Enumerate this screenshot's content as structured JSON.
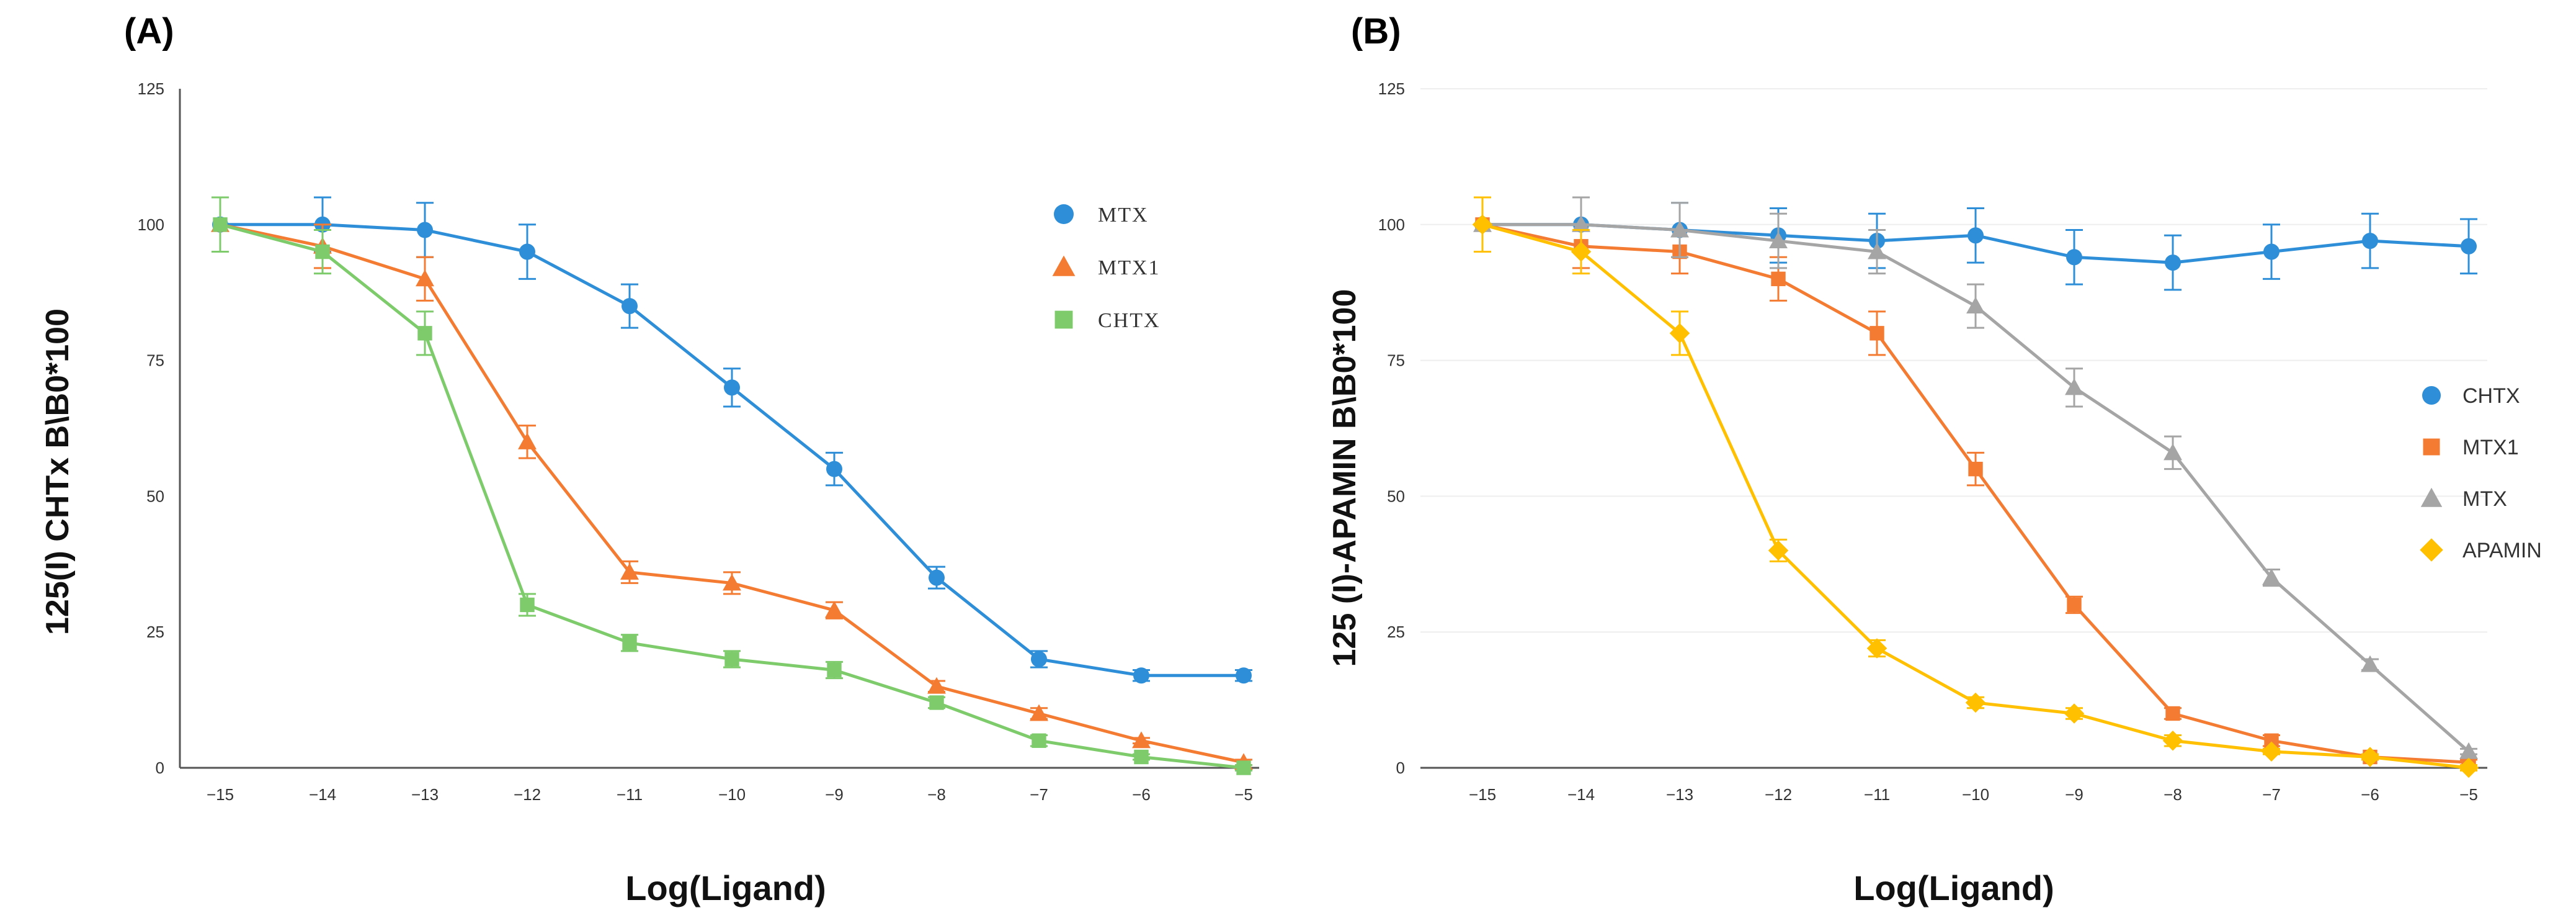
{
  "chart_data": [
    {
      "type": "line",
      "panel_label": "(A)",
      "title": "",
      "xlabel": "Log(Ligand)",
      "ylabel": "125(I) CHTx B\\B0*100",
      "xlim": [
        -15,
        -5
      ],
      "ylim": [
        0,
        125
      ],
      "xticks": [
        -15,
        -14,
        -13,
        -12,
        -11,
        -10,
        -9,
        -8,
        -7,
        -6,
        -5
      ],
      "yticks": [
        0,
        25,
        50,
        75,
        100,
        125
      ],
      "grid": false,
      "legend_position": "top-right",
      "x": [
        -15,
        -14,
        -13,
        -12,
        -11,
        -10,
        -9,
        -8,
        -7,
        -6,
        -5
      ],
      "series": [
        {
          "name": "MTX",
          "color": "#2e8fd8",
          "marker": "circle",
          "values": [
            100,
            100,
            99,
            95,
            85,
            70,
            55,
            35,
            20,
            17,
            17
          ],
          "errors": [
            5,
            5,
            5,
            5,
            4,
            3.5,
            3,
            2,
            1.5,
            1,
            1
          ]
        },
        {
          "name": "MTX1",
          "color": "#f47b32",
          "marker": "triangle",
          "values": [
            100,
            96,
            90,
            60,
            36,
            34,
            29,
            15,
            10,
            5,
            1
          ],
          "errors": [
            5,
            4,
            4,
            3,
            2,
            2,
            1.5,
            1,
            1,
            0.5,
            0.5
          ]
        },
        {
          "name": "CHTX",
          "color": "#7dcb6b",
          "marker": "square",
          "values": [
            100,
            95,
            80,
            30,
            23,
            20,
            18,
            12,
            5,
            2,
            0
          ],
          "errors": [
            5,
            4,
            4,
            2,
            1.5,
            1.5,
            1.5,
            1,
            1,
            0.5,
            0.5
          ]
        }
      ]
    },
    {
      "type": "line",
      "panel_label": "(B)",
      "title": "",
      "xlabel": "Log(Ligand)",
      "ylabel": "125 (I)-APAMIN B\\B0*100",
      "xlim": [
        -15,
        -5
      ],
      "ylim": [
        0,
        125
      ],
      "xticks": [
        -15,
        -14,
        -13,
        -12,
        -11,
        -10,
        -9,
        -8,
        -7,
        -6,
        -5
      ],
      "yticks": [
        0,
        25,
        50,
        75,
        100,
        125
      ],
      "grid": true,
      "legend_position": "right",
      "x": [
        -15,
        -14,
        -13,
        -12,
        -11,
        -10,
        -9,
        -8,
        -7,
        -6,
        -5
      ],
      "series": [
        {
          "name": "CHTX",
          "color": "#2e8fd8",
          "marker": "circle",
          "values": [
            100,
            100,
            99,
            98,
            97,
            98,
            94,
            93,
            95,
            97,
            96
          ],
          "errors": [
            5,
            5,
            5,
            5,
            5,
            5,
            5,
            5,
            5,
            5,
            5
          ]
        },
        {
          "name": "MTX1",
          "color": "#f47b32",
          "marker": "square",
          "values": [
            100,
            96,
            95,
            90,
            80,
            55,
            30,
            10,
            5,
            2,
            1
          ],
          "errors": [
            5,
            4,
            4,
            4,
            4,
            3,
            1.5,
            1,
            1,
            0.5,
            0.5
          ]
        },
        {
          "name": "MTX",
          "color": "#a5a5a5",
          "marker": "triangle",
          "values": [
            100,
            100,
            99,
            97,
            95,
            85,
            70,
            58,
            35,
            19,
            3
          ],
          "errors": [
            5,
            5,
            5,
            5,
            4,
            4,
            3.5,
            3,
            1.5,
            1,
            0.5
          ]
        },
        {
          "name": "APAMIN",
          "color": "#ffc000",
          "marker": "diamond",
          "values": [
            100,
            95,
            80,
            40,
            22,
            12,
            10,
            5,
            3,
            2,
            0
          ],
          "errors": [
            5,
            4,
            4,
            2,
            1.5,
            1,
            1,
            1,
            0.5,
            0.5,
            0.5
          ]
        }
      ]
    }
  ]
}
